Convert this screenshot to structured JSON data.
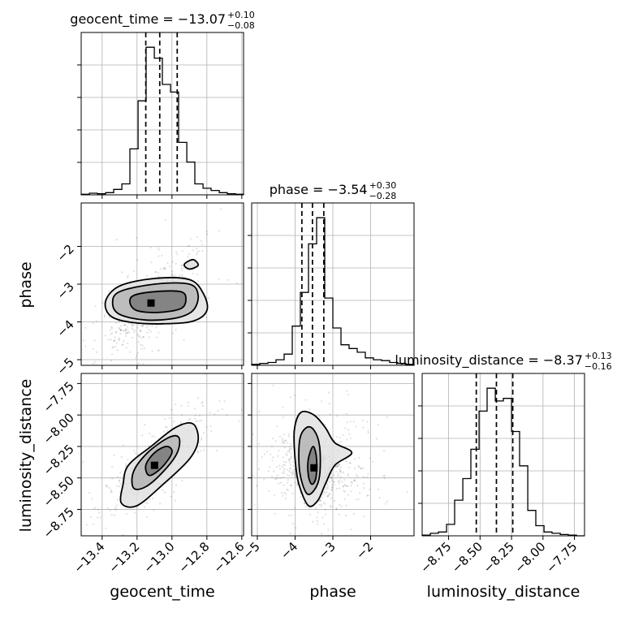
{
  "chart_data": {
    "type": "corner",
    "parameters": [
      "geocent_time",
      "phase",
      "luminosity_distance"
    ],
    "axis_labels": {
      "x": [
        "geocent_time",
        "phase",
        "luminosity_distance"
      ],
      "y": [
        "phase",
        "luminosity_distance"
      ]
    },
    "grid": true,
    "ranges": {
      "geocent_time": [
        -13.52,
        -12.59
      ],
      "phase": [
        -5.15,
        -0.85
      ],
      "luminosity_distance": [
        -8.96,
        -7.67
      ]
    },
    "ticks": {
      "geocent_time": [
        -13.4,
        -13.2,
        -13.0,
        -12.8,
        -12.6
      ],
      "phase": [
        -5,
        -4,
        -3,
        -2
      ],
      "luminosity_distance": [
        -8.75,
        -8.5,
        -8.25,
        -8.0,
        -7.75
      ]
    },
    "tick_labels": {
      "geocent_time": [
        "−13.4",
        "−13.2",
        "−13.0",
        "−12.8",
        "−12.6"
      ],
      "phase": [
        "−5",
        "−4",
        "−3",
        "−2"
      ],
      "luminosity_distance": [
        "−8.75",
        "−8.50",
        "−8.25",
        "−8.00",
        "−7.75"
      ]
    },
    "titles": [
      {
        "text": "geocent_time = −13.07",
        "sup": "+0.10",
        "sub": "−0.08"
      },
      {
        "text": "phase = −3.54",
        "sup": "+0.30",
        "sub": "−0.28"
      },
      {
        "text": "luminosity_distance = −8.37",
        "sup": "+0.13",
        "sub": "−0.16"
      }
    ],
    "quantiles": {
      "geocent_time": [
        -13.15,
        -13.07,
        -12.97
      ],
      "phase": [
        -3.82,
        -3.54,
        -3.24
      ],
      "luminosity_distance": [
        -8.53,
        -8.37,
        -8.24
      ]
    },
    "histograms": {
      "geocent_time": {
        "edges": [
          -13.52,
          -13.473,
          -13.427,
          -13.38,
          -13.334,
          -13.287,
          -13.241,
          -13.194,
          -13.148,
          -13.101,
          -13.055,
          -13.008,
          -12.962,
          -12.915,
          -12.869,
          -12.822,
          -12.776,
          -12.729,
          -12.683,
          -12.636,
          -12.59
        ],
        "counts": [
          0.5,
          1.5,
          1,
          2,
          5,
          10,
          42,
          86,
          135,
          125,
          101,
          94,
          48,
          30,
          10,
          6,
          4,
          2,
          1,
          0.5
        ]
      },
      "phase": {
        "edges": [
          -5.15,
          -4.935,
          -4.72,
          -4.505,
          -4.29,
          -4.075,
          -3.86,
          -3.645,
          -3.43,
          -3.215,
          -3.0,
          -2.785,
          -2.57,
          -2.355,
          -2.14,
          -1.925,
          -1.71,
          -1.495,
          -1.28,
          -1.065,
          -0.85
        ],
        "counts": [
          1,
          2,
          3,
          6,
          12,
          42,
          78,
          130,
          158,
          72,
          40,
          22,
          18,
          14,
          8,
          6,
          5,
          3,
          2,
          1
        ]
      },
      "luminosity_distance": {
        "edges": [
          -8.96,
          -8.895,
          -8.831,
          -8.766,
          -8.702,
          -8.637,
          -8.573,
          -8.508,
          -8.444,
          -8.379,
          -8.315,
          -8.25,
          -8.186,
          -8.121,
          -8.057,
          -7.992,
          -7.928,
          -7.863,
          -7.799,
          -7.734,
          -7.67
        ],
        "counts": [
          0.5,
          2,
          3,
          9,
          28,
          45,
          68,
          98,
          116,
          106,
          108,
          82,
          55,
          20,
          8,
          3,
          2,
          1,
          0.5,
          0
        ]
      }
    },
    "contours": {
      "phase_vs_geocent_time": {
        "peak": [
          -13.12,
          -3.5
        ],
        "levels": [
          [
            [
              -13.22,
              -3.3
            ],
            [
              -13.1,
              -3.2
            ],
            [
              -12.95,
              -3.2
            ],
            [
              -12.92,
              -3.4
            ],
            [
              -12.95,
              -3.65
            ],
            [
              -13.08,
              -3.75
            ],
            [
              -13.2,
              -3.7
            ],
            [
              -13.24,
              -3.5
            ]
          ],
          [
            [
              -13.3,
              -3.2
            ],
            [
              -13.1,
              -3.0
            ],
            [
              -12.9,
              -3.0
            ],
            [
              -12.85,
              -3.3
            ],
            [
              -12.88,
              -3.7
            ],
            [
              -12.98,
              -3.9
            ],
            [
              -13.15,
              -3.95
            ],
            [
              -13.3,
              -3.8
            ],
            [
              -13.34,
              -3.5
            ]
          ],
          [
            [
              -13.38,
              -3.45
            ],
            [
              -13.3,
              -3.05
            ],
            [
              -13.1,
              -2.85
            ],
            [
              -12.9,
              -2.88
            ],
            [
              -12.82,
              -3.25
            ],
            [
              -12.8,
              -3.7
            ],
            [
              -12.88,
              -3.98
            ],
            [
              -13.05,
              -4.05
            ],
            [
              -13.22,
              -4.02
            ],
            [
              -13.35,
              -3.85
            ]
          ]
        ],
        "islands": [
          [
            [
              -12.88,
              -2.35
            ],
            [
              -12.85,
              -2.5
            ],
            [
              -12.9,
              -2.6
            ],
            [
              -12.93,
              -2.48
            ]
          ]
        ]
      },
      "luminosity_distance_vs_geocent_time": {
        "peak": [
          -13.1,
          -8.4
        ],
        "levels": [
          [
            [
              -13.15,
              -8.4
            ],
            [
              -13.1,
              -8.3
            ],
            [
              -13.03,
              -8.25
            ],
            [
              -13.0,
              -8.3
            ],
            [
              -13.06,
              -8.42
            ],
            [
              -13.13,
              -8.48
            ]
          ],
          [
            [
              -13.22,
              -8.45
            ],
            [
              -13.14,
              -8.3
            ],
            [
              -13.02,
              -8.18
            ],
            [
              -12.96,
              -8.18
            ],
            [
              -12.97,
              -8.3
            ],
            [
              -13.05,
              -8.45
            ],
            [
              -13.15,
              -8.57
            ],
            [
              -13.22,
              -8.58
            ]
          ],
          [
            [
              -13.28,
              -8.55
            ],
            [
              -13.25,
              -8.4
            ],
            [
              -13.12,
              -8.25
            ],
            [
              -12.98,
              -8.1
            ],
            [
              -12.88,
              -8.07
            ],
            [
              -12.85,
              -8.2
            ],
            [
              -12.9,
              -8.35
            ],
            [
              -13.05,
              -8.55
            ],
            [
              -13.2,
              -8.72
            ],
            [
              -13.29,
              -8.7
            ]
          ]
        ]
      },
      "luminosity_distance_vs_phase": {
        "peak": [
          -3.5,
          -8.42
        ],
        "levels": [
          [
            [
              -3.65,
              -8.35
            ],
            [
              -3.52,
              -8.25
            ],
            [
              -3.43,
              -8.35
            ],
            [
              -3.45,
              -8.5
            ],
            [
              -3.56,
              -8.55
            ],
            [
              -3.65,
              -8.48
            ]
          ],
          [
            [
              -3.88,
              -8.2
            ],
            [
              -3.7,
              -8.1
            ],
            [
              -3.5,
              -8.12
            ],
            [
              -3.35,
              -8.25
            ],
            [
              -3.35,
              -8.48
            ],
            [
              -3.5,
              -8.6
            ],
            [
              -3.7,
              -8.62
            ],
            [
              -3.88,
              -8.45
            ]
          ],
          [
            [
              -4.02,
              -8.12
            ],
            [
              -3.85,
              -7.98
            ],
            [
              -3.5,
              -8.0
            ],
            [
              -3.2,
              -8.1
            ],
            [
              -2.95,
              -8.22
            ],
            [
              -2.5,
              -8.3
            ],
            [
              -2.95,
              -8.4
            ],
            [
              -3.2,
              -8.55
            ],
            [
              -3.4,
              -8.68
            ],
            [
              -3.65,
              -8.72
            ],
            [
              -3.9,
              -8.55
            ],
            [
              -4.0,
              -8.35
            ]
          ]
        ]
      }
    }
  }
}
